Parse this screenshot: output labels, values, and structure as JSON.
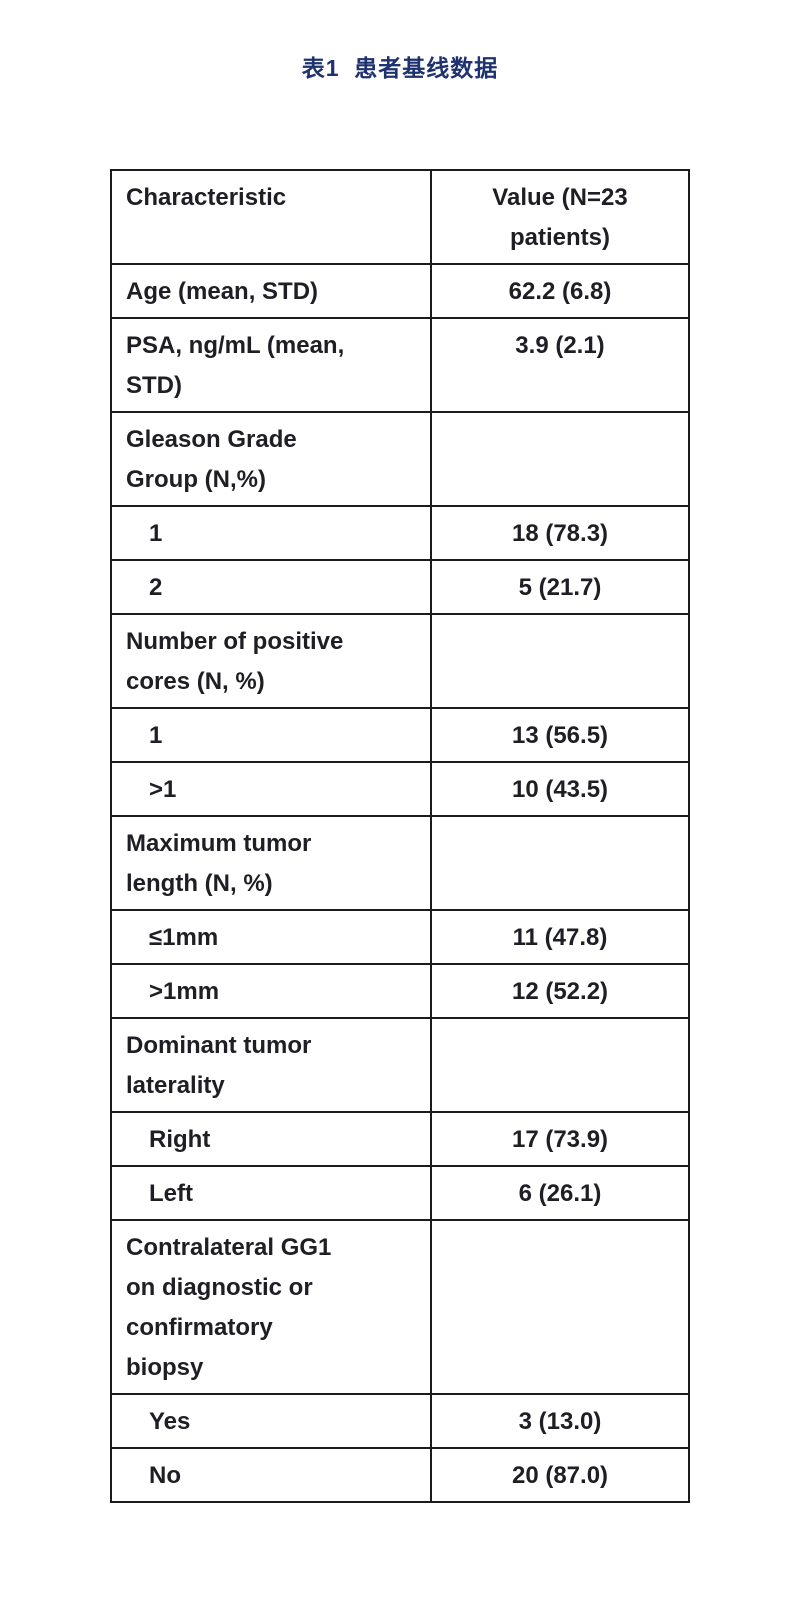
{
  "title": "表1  患者基线数据",
  "table": {
    "columns": [
      {
        "label": "Characteristic"
      },
      {
        "label": "Value (N=23\npatients)"
      }
    ],
    "rows": [
      {
        "label": "Age (mean, STD)",
        "value": "62.2 (6.8)",
        "indent": false
      },
      {
        "label": "PSA, ng/mL (mean,\nSTD)",
        "value": "3.9 (2.1)",
        "indent": false
      },
      {
        "label": "Gleason Grade\nGroup (N,%)",
        "value": "",
        "indent": false
      },
      {
        "label": "1",
        "value": "18 (78.3)",
        "indent": true
      },
      {
        "label": "2",
        "value": "5 (21.7)",
        "indent": true
      },
      {
        "label": "Number of positive\ncores (N, %)",
        "value": "",
        "indent": false
      },
      {
        "label": "1",
        "value": "13 (56.5)",
        "indent": true
      },
      {
        "label": ">1",
        "value": "10 (43.5)",
        "indent": true
      },
      {
        "label": "Maximum tumor\nlength (N, %)",
        "value": "",
        "indent": false
      },
      {
        "label": "≤1mm",
        "value": "11 (47.8)",
        "indent": true
      },
      {
        "label": ">1mm",
        "value": "12 (52.2)",
        "indent": true
      },
      {
        "label": "Dominant tumor\nlaterality",
        "value": "",
        "indent": false
      },
      {
        "label": "Right",
        "value": "17 (73.9)",
        "indent": true
      },
      {
        "label": "Left",
        "value": "6 (26.1)",
        "indent": true
      },
      {
        "label": "Contralateral GG1\non diagnostic or\nconfirmatory\nbiopsy",
        "value": "",
        "indent": false
      },
      {
        "label": "Yes",
        "value": "3 (13.0)",
        "indent": true
      },
      {
        "label": "No",
        "value": "20 (87.0)",
        "indent": true
      }
    ]
  },
  "colors": {
    "title": "#1f3270",
    "table_text": "#1e1e24",
    "border": "#1b1b1b",
    "background": "#ffffff"
  }
}
